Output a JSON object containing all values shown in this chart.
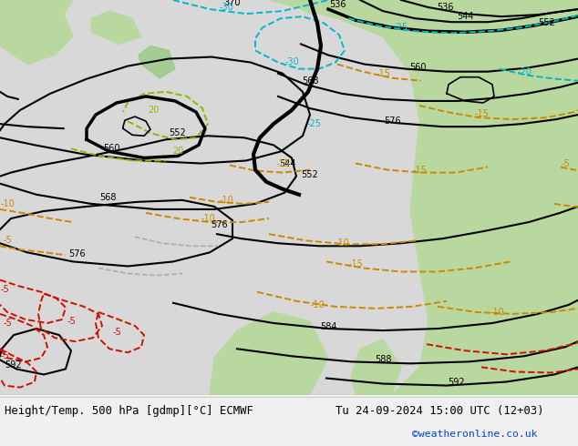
{
  "title_left": "Height/Temp. 500 hPa [gdmp][°C] ECMWF",
  "title_right": "Tu 24-09-2024 15:00 UTC (12+03)",
  "credit": "©weatheronline.co.uk",
  "bg_ocean": "#c8d8e8",
  "bg_land_gray": "#d8d8d8",
  "bg_land_green": "#b8d8a0",
  "bg_land_darkgreen": "#90c878",
  "bottom_bar_color": "#f0f0f0",
  "figsize": [
    6.34,
    4.9
  ],
  "dpi": 100,
  "c_black": "#000000",
  "c_cyan": "#00b8cc",
  "c_orange": "#cc8800",
  "c_red": "#cc1100",
  "c_gray": "#aaaaaa",
  "c_green_dashed": "#88bb00",
  "lw_major": 2.5,
  "lw_minor": 1.5,
  "lw_temp": 1.4
}
